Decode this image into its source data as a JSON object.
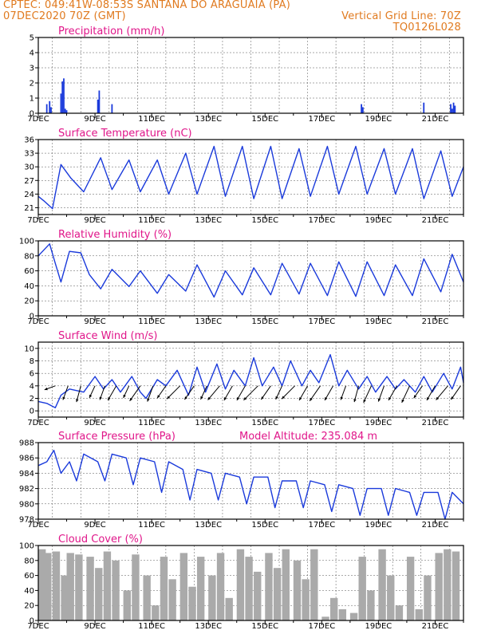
{
  "header": {
    "line1": "CPTEC:   049:41W-08:53S  SANTANA DO ARAGUAIA (PA)",
    "line2_left": "07DEC2020 70Z (GMT)",
    "line2_right": "Vertical Grid Line: 70Z",
    "line3_right": "TQ0126L028",
    "model_altitude": "Model Altitude: 235.084 m",
    "color": "#e07a1f"
  },
  "colors": {
    "title": "#e0168a",
    "line": "#1a3adb",
    "cloud": "#aaaaaa"
  },
  "chart_data": [
    {
      "type": "bar",
      "title": "Precipitation (mm/h)",
      "ylim": [
        0,
        5
      ],
      "yticks": [
        "0",
        "1",
        "2",
        "3",
        "4",
        "5"
      ],
      "xticks": [
        "7DEC",
        "9DEC",
        "11DEC",
        "13DEC",
        "15DEC",
        "17DEC",
        "19DEC",
        "21DEC"
      ],
      "x": [
        7.3,
        7.4,
        7.45,
        7.8,
        7.85,
        7.9,
        7.95,
        8.0,
        9.1,
        9.15,
        9.6,
        18.4,
        18.45,
        20.6,
        21.55,
        21.6,
        21.65,
        21.7
      ],
      "values": [
        0.6,
        0.8,
        0.4,
        1.3,
        2.1,
        2.3,
        0.3,
        0.2,
        0.9,
        1.5,
        0.6,
        0.6,
        0.4,
        0.7,
        0.6,
        0.3,
        0.7,
        0.5
      ]
    },
    {
      "type": "line",
      "title": "Surface Temperature (nC)",
      "ylim": [
        19.5,
        36
      ],
      "yticks": [
        "21",
        "24",
        "27",
        "30",
        "33",
        "36"
      ],
      "xticks": [
        "7DEC",
        "9DEC",
        "11DEC",
        "13DEC",
        "15DEC",
        "17DEC",
        "19DEC",
        "21DEC"
      ],
      "x": [
        7.0,
        7.2,
        7.5,
        7.6,
        7.8,
        8.15,
        8.6,
        9.2,
        9.6,
        10.2,
        10.6,
        11.2,
        11.6,
        12.2,
        12.6,
        13.2,
        13.6,
        14.2,
        14.6,
        15.2,
        15.6,
        16.2,
        16.6,
        17.2,
        17.6,
        18.2,
        18.6,
        19.2,
        19.6,
        20.2,
        20.6,
        21.2,
        21.6,
        22.0
      ],
      "values": [
        23.5,
        22.5,
        20.8,
        24,
        30.5,
        27.5,
        24.5,
        32,
        25,
        31.5,
        24.5,
        31.5,
        24,
        33,
        24,
        34.5,
        23.5,
        34.5,
        23,
        34.5,
        23,
        34,
        23.5,
        34.5,
        24,
        34.5,
        24,
        34,
        24,
        34,
        23,
        33.5,
        23.5,
        30
      ]
    },
    {
      "type": "line",
      "title": "Relative Humidity (%)",
      "ylim": [
        0,
        100
      ],
      "yticks": [
        "0",
        "20",
        "40",
        "60",
        "80",
        "100"
      ],
      "xticks": [
        "7DEC",
        "9DEC",
        "11DEC",
        "13DEC",
        "15DEC",
        "17DEC",
        "19DEC",
        "21DEC"
      ],
      "x": [
        7.0,
        7.2,
        7.4,
        7.6,
        7.8,
        8.1,
        8.5,
        8.8,
        9.2,
        9.6,
        10.2,
        10.6,
        11.2,
        11.6,
        12.2,
        12.6,
        13.2,
        13.6,
        14.2,
        14.6,
        15.2,
        15.6,
        16.2,
        16.6,
        17.2,
        17.6,
        18.2,
        18.6,
        19.2,
        19.6,
        20.2,
        20.6,
        21.2,
        21.6,
        22.0
      ],
      "values": [
        80,
        88,
        96,
        70,
        45,
        86,
        84,
        55,
        36,
        62,
        39,
        60,
        30,
        55,
        33,
        68,
        25,
        60,
        28,
        64,
        28,
        70,
        29,
        70,
        27,
        72,
        26,
        72,
        27,
        68,
        27,
        76,
        32,
        82,
        45
      ]
    },
    {
      "type": "line",
      "title": "Surface Wind (m/s)",
      "ylim": [
        -1,
        11
      ],
      "yticks": [
        "0",
        "2",
        "4",
        "6",
        "8",
        "10"
      ],
      "xticks": [
        "7DEC",
        "9DEC",
        "11DEC",
        "13DEC",
        "15DEC",
        "17DEC",
        "19DEC",
        "21DEC"
      ],
      "x": [
        7.0,
        7.3,
        7.6,
        7.8,
        8.1,
        8.6,
        9.0,
        9.3,
        9.6,
        9.9,
        10.3,
        10.6,
        10.8,
        11.2,
        11.5,
        11.9,
        12.3,
        12.6,
        12.9,
        13.3,
        13.6,
        13.9,
        14.3,
        14.6,
        14.9,
        15.3,
        15.6,
        15.9,
        16.3,
        16.6,
        16.9,
        17.3,
        17.6,
        17.9,
        18.3,
        18.6,
        18.9,
        19.3,
        19.6,
        19.9,
        20.3,
        20.6,
        20.9,
        21.3,
        21.6,
        21.9,
        22.0
      ],
      "values": [
        1.5,
        1.2,
        0.5,
        2.5,
        3.5,
        3.0,
        5.5,
        3.5,
        5.0,
        3.0,
        5.5,
        3.0,
        2.0,
        5.0,
        4.0,
        6.5,
        2.5,
        7.0,
        3.0,
        7.5,
        3.5,
        6.5,
        4.0,
        8.5,
        4.0,
        7.0,
        4.0,
        8.0,
        4.0,
        6.5,
        4.5,
        9.0,
        4.0,
        6.5,
        3.5,
        5.5,
        3.0,
        5.5,
        3.5,
        5.0,
        3.0,
        5.5,
        3.0,
        6.0,
        3.5,
        7.0,
        4.5
      ]
    },
    {
      "type": "line",
      "title": "Surface Pressure (hPa)",
      "ylim": [
        978,
        988
      ],
      "yticks": [
        "978",
        "980",
        "982",
        "984",
        "986",
        "988"
      ],
      "xticks": [
        "7DEC",
        "9DEC",
        "11DEC",
        "13DEC",
        "15DEC",
        "17DEC",
        "19DEC",
        "21DEC"
      ],
      "x": [
        7.0,
        7.3,
        7.55,
        7.8,
        8.1,
        8.35,
        8.6,
        9.1,
        9.35,
        9.6,
        10.1,
        10.35,
        10.6,
        11.1,
        11.35,
        11.6,
        12.1,
        12.35,
        12.6,
        13.1,
        13.35,
        13.6,
        14.1,
        14.35,
        14.6,
        15.1,
        15.35,
        15.6,
        16.1,
        16.35,
        16.6,
        17.1,
        17.35,
        17.6,
        18.1,
        18.35,
        18.6,
        19.1,
        19.35,
        19.6,
        20.1,
        20.35,
        20.6,
        21.1,
        21.35,
        21.6,
        22.0
      ],
      "values": [
        985,
        985.5,
        987,
        984,
        985.5,
        983,
        986.5,
        985.5,
        983,
        986.5,
        986,
        982.5,
        986,
        985.5,
        981.5,
        985.5,
        984.5,
        980.5,
        984.5,
        984,
        980.5,
        984,
        983.5,
        980,
        983.5,
        983.5,
        979.5,
        983,
        983,
        979.5,
        983,
        982.5,
        979,
        982.5,
        982,
        978.5,
        982,
        982,
        978.5,
        982,
        981.5,
        978.5,
        981.5,
        981.5,
        978,
        981.5,
        980
      ]
    },
    {
      "type": "area",
      "title": "Cloud Cover (%)",
      "ylim": [
        0,
        100
      ],
      "yticks": [
        "0",
        "20",
        "40",
        "60",
        "80",
        "100"
      ],
      "xticks": [
        "7DEC",
        "9DEC",
        "11DEC",
        "13DEC",
        "15DEC",
        "17DEC",
        "19DEC",
        "21DEC"
      ],
      "x": [
        7.0,
        7.2,
        7.5,
        7.8,
        8.0,
        8.3,
        8.7,
        9.0,
        9.3,
        9.6,
        10.0,
        10.3,
        10.7,
        11.0,
        11.3,
        11.6,
        12.0,
        12.3,
        12.6,
        13.0,
        13.3,
        13.6,
        14.0,
        14.3,
        14.6,
        15.0,
        15.3,
        15.6,
        16.0,
        16.3,
        16.6,
        17.0,
        17.3,
        17.6,
        18.0,
        18.3,
        18.6,
        19.0,
        19.3,
        19.6,
        20.0,
        20.3,
        20.6,
        21.0,
        21.3,
        21.6,
        22.0
      ],
      "values": [
        95,
        90,
        92,
        60,
        90,
        88,
        85,
        70,
        92,
        80,
        40,
        88,
        60,
        20,
        85,
        55,
        90,
        45,
        85,
        60,
        90,
        30,
        95,
        85,
        65,
        90,
        70,
        95,
        80,
        55,
        95,
        5,
        30,
        15,
        10,
        85,
        40,
        95,
        60,
        20,
        85,
        15,
        60,
        90,
        95,
        92,
        90
      ]
    }
  ],
  "wind_barbs": {
    "x": [
      7.6,
      8.05,
      8.5,
      9.0,
      9.35,
      9.75,
      10.2,
      10.6,
      11.05,
      11.5,
      12.0,
      12.5,
      12.95,
      13.4,
      13.85,
      14.3,
      14.75,
      15.2,
      15.6,
      16.05,
      16.5,
      16.95,
      17.4,
      17.85,
      18.3,
      18.75,
      19.2,
      19.65,
      20.1,
      20.55,
      21.0,
      21.45,
      21.9
    ],
    "speed": [
      2,
      4,
      5,
      3,
      4,
      5,
      3,
      6,
      5,
      4,
      6,
      5,
      4,
      6,
      5,
      5,
      7,
      5,
      4,
      6,
      5,
      6,
      5,
      4,
      5,
      6,
      5,
      5,
      6,
      4,
      5,
      6,
      5
    ],
    "dir_deg": [
      250,
      200,
      195,
      205,
      200,
      210,
      205,
      215,
      200,
      215,
      225,
      215,
      205,
      220,
      210,
      210,
      225,
      215,
      205,
      225,
      210,
      215,
      210,
      200,
      195,
      205,
      200,
      210,
      205,
      215,
      210,
      220,
      215
    ]
  }
}
